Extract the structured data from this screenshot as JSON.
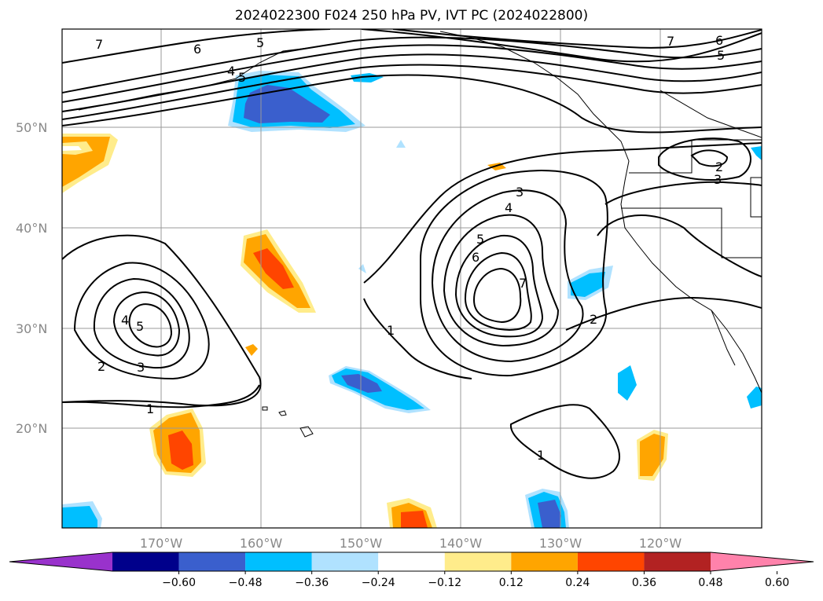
{
  "title": "2024022300 F024 250 hPa PV, IVT PC (2024022800)",
  "lat_labels": [
    "50°N",
    "40°N",
    "30°N",
    "20°N"
  ],
  "lon_labels": [
    "170°W",
    "160°W",
    "150°W",
    "140°W",
    "130°W",
    "120°W"
  ],
  "contour_labels": [
    "7",
    "6",
    "5",
    "4",
    "5",
    "5",
    "6",
    "7",
    "3",
    "4",
    "5",
    "6",
    "7",
    "4",
    "5",
    "3",
    "2",
    "1",
    "3",
    "2",
    "1",
    "1",
    "2"
  ],
  "colorbar": {
    "ticks": [
      "−0.60",
      "−0.48",
      "−0.36",
      "−0.24",
      "−0.12",
      "0.12",
      "0.24",
      "0.36",
      "0.48",
      "0.60"
    ],
    "colors": [
      "#9932cc",
      "#00008b",
      "#3a5fcd",
      "#00bfff",
      "#b0e2ff",
      "#ffffff",
      "#ffec8b",
      "#ffa500",
      "#ff4500",
      "#b22222",
      "#ff82ab"
    ]
  }
}
